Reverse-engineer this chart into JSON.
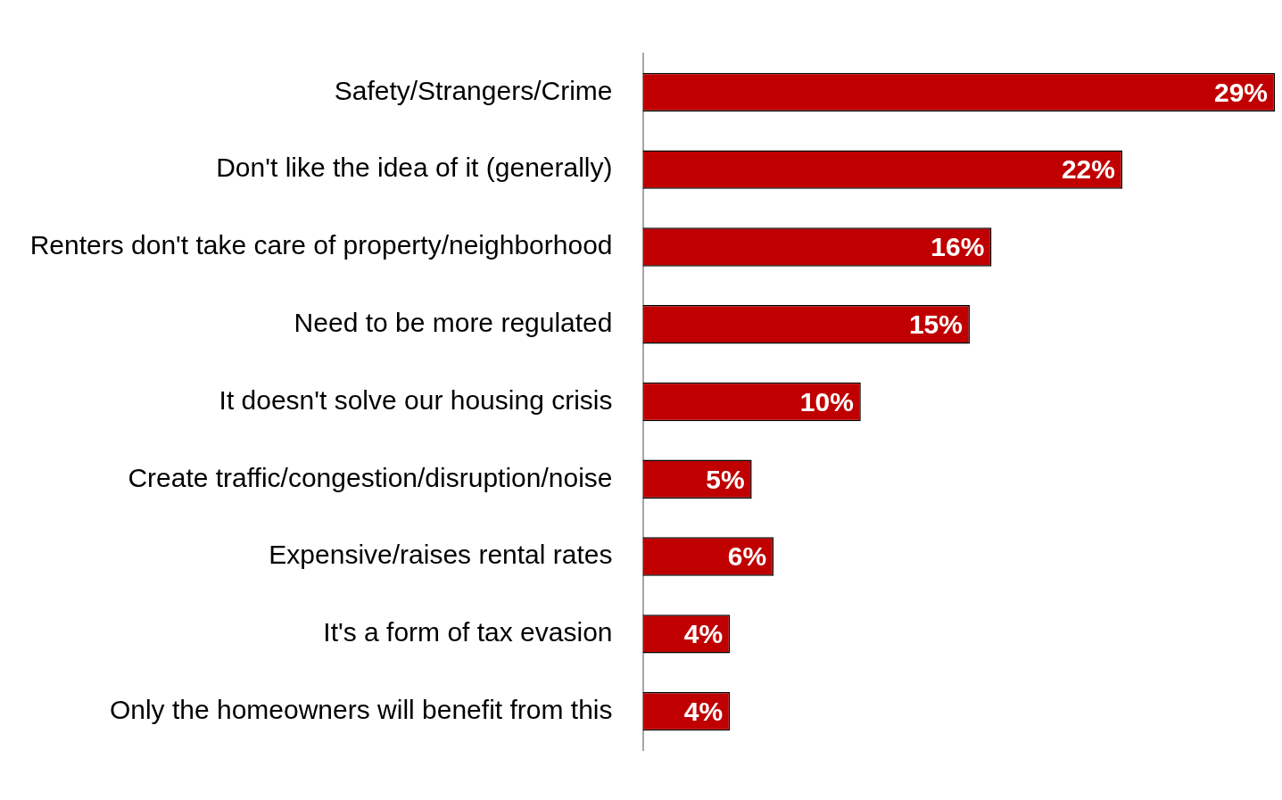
{
  "chart_data": {
    "type": "bar",
    "orientation": "horizontal",
    "categories": [
      "Safety/Strangers/Crime",
      "Don't like the idea of it (generally)",
      "Renters don't take care of property/neighborhood",
      "Need to be more regulated",
      "It doesn't solve our housing crisis",
      "Create traffic/congestion/disruption/noise",
      "Expensive/raises rental rates",
      "It's a form of tax evasion",
      "Only the homeowners will benefit from this"
    ],
    "values": [
      29,
      22,
      16,
      15,
      10,
      5,
      6,
      4,
      4
    ],
    "value_labels": [
      "29%",
      "22%",
      "16%",
      "15%",
      "10%",
      "5%",
      "6%",
      "4%",
      "4%"
    ],
    "color": "#c00000"
  }
}
